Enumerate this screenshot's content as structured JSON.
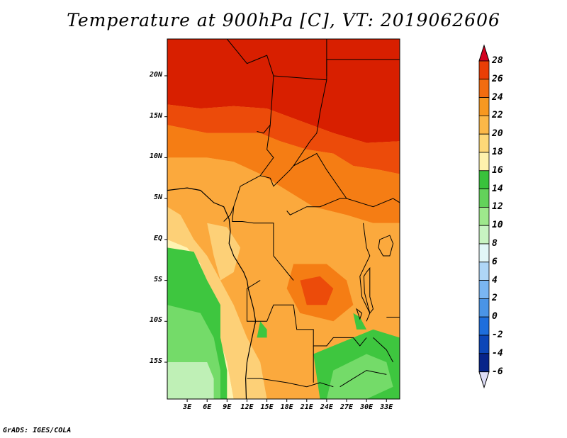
{
  "title": "Temperature at 900hPa [C], VT: 2019062606",
  "credit": "GrADS: IGES/COLA",
  "map": {
    "lon_range": [
      0,
      35
    ],
    "lat_range": [
      -19.5,
      24.5
    ],
    "lat_ticks": [
      {
        "value": 20,
        "label": "20N"
      },
      {
        "value": 15,
        "label": "15N"
      },
      {
        "value": 10,
        "label": "10N"
      },
      {
        "value": 5,
        "label": "5N"
      },
      {
        "value": 0,
        "label": "EQ"
      },
      {
        "value": -5,
        "label": "5S"
      },
      {
        "value": -10,
        "label": "10S"
      },
      {
        "value": -15,
        "label": "15S"
      }
    ],
    "lon_ticks": [
      {
        "value": 3,
        "label": "3E"
      },
      {
        "value": 6,
        "label": "6E"
      },
      {
        "value": 9,
        "label": "9E"
      },
      {
        "value": 12,
        "label": "12E"
      },
      {
        "value": 15,
        "label": "15E"
      },
      {
        "value": 18,
        "label": "18E"
      },
      {
        "value": 21,
        "label": "21E"
      },
      {
        "value": 24,
        "label": "24E"
      },
      {
        "value": 27,
        "label": "27E"
      },
      {
        "value": 30,
        "label": "30E"
      },
      {
        "value": 33,
        "label": "33E"
      }
    ],
    "field": [
      {
        "level": 27,
        "points": [
          [
            0,
            24.5
          ],
          [
            35,
            24.5
          ],
          [
            35,
            12
          ],
          [
            30,
            11.8
          ],
          [
            25,
            13
          ],
          [
            20,
            14.5
          ],
          [
            15,
            16
          ],
          [
            10,
            16.3
          ],
          [
            5,
            16
          ],
          [
            0,
            16.5
          ]
        ]
      },
      {
        "level": 25,
        "points": [
          [
            0,
            16.5
          ],
          [
            5,
            16
          ],
          [
            10,
            16.3
          ],
          [
            15,
            16
          ],
          [
            20,
            14.5
          ],
          [
            25,
            13
          ],
          [
            30,
            11.8
          ],
          [
            35,
            12
          ],
          [
            35,
            8
          ],
          [
            32,
            8.5
          ],
          [
            28,
            9
          ],
          [
            25,
            10.5
          ],
          [
            21,
            11
          ],
          [
            17,
            12
          ],
          [
            14,
            13
          ],
          [
            10,
            13
          ],
          [
            6,
            13
          ],
          [
            3,
            13.5
          ],
          [
            0,
            14
          ]
        ]
      },
      {
        "level": 23,
        "points": [
          [
            0,
            14
          ],
          [
            3,
            13.5
          ],
          [
            6,
            13
          ],
          [
            10,
            13
          ],
          [
            14,
            13
          ],
          [
            17,
            12
          ],
          [
            21,
            11
          ],
          [
            25,
            10.5
          ],
          [
            28,
            9
          ],
          [
            32,
            8.5
          ],
          [
            35,
            8
          ],
          [
            35,
            2
          ],
          [
            31,
            2
          ],
          [
            27,
            3
          ],
          [
            22,
            4
          ],
          [
            18,
            6
          ],
          [
            14,
            8
          ],
          [
            10,
            9.5
          ],
          [
            6,
            10
          ],
          [
            3,
            10
          ],
          [
            0,
            10
          ]
        ]
      },
      {
        "level": 21,
        "points": [
          [
            0,
            10
          ],
          [
            3,
            10
          ],
          [
            6,
            10
          ],
          [
            10,
            9.5
          ],
          [
            14,
            8
          ],
          [
            18,
            6
          ],
          [
            22,
            4
          ],
          [
            27,
            3
          ],
          [
            31,
            2
          ],
          [
            35,
            2
          ],
          [
            35,
            -19.5
          ],
          [
            15,
            -19.5
          ],
          [
            14,
            -15
          ],
          [
            12,
            -12
          ],
          [
            10,
            -8
          ],
          [
            8,
            -5
          ],
          [
            6,
            -2
          ],
          [
            4,
            0
          ],
          [
            2,
            3
          ],
          [
            0,
            4
          ]
        ]
      },
      {
        "level": 23,
        "points": [
          [
            19,
            -3
          ],
          [
            24,
            -3
          ],
          [
            27,
            -5
          ],
          [
            28,
            -8
          ],
          [
            25,
            -10
          ],
          [
            20,
            -9
          ],
          [
            18,
            -6
          ]
        ]
      },
      {
        "level": 25,
        "points": [
          [
            20,
            -5
          ],
          [
            23,
            -4.5
          ],
          [
            25,
            -6
          ],
          [
            24,
            -8
          ],
          [
            21,
            -8
          ]
        ]
      },
      {
        "level": 19,
        "points": [
          [
            0,
            4
          ],
          [
            2,
            3
          ],
          [
            4,
            0
          ],
          [
            6,
            -2
          ],
          [
            8,
            -5
          ],
          [
            10,
            -8
          ],
          [
            12,
            -12
          ],
          [
            14,
            -15
          ],
          [
            15,
            -19.5
          ],
          [
            10,
            -19.5
          ],
          [
            9,
            -15
          ],
          [
            7,
            -10
          ],
          [
            6,
            -6
          ],
          [
            5,
            -3
          ],
          [
            3,
            -1
          ],
          [
            0,
            0
          ]
        ]
      },
      {
        "level": 19,
        "points": [
          [
            6,
            2
          ],
          [
            9,
            1.5
          ],
          [
            11,
            -1
          ],
          [
            10,
            -4
          ],
          [
            8,
            -5
          ],
          [
            7,
            -2
          ]
        ]
      },
      {
        "level": 17,
        "points": [
          [
            0,
            0
          ],
          [
            3,
            -1
          ],
          [
            5,
            -3
          ],
          [
            6,
            -6
          ],
          [
            7,
            -10
          ],
          [
            9,
            -15
          ],
          [
            10,
            -19.5
          ],
          [
            0,
            -19.5
          ]
        ]
      },
      {
        "level": 15,
        "points": [
          [
            0,
            -1
          ],
          [
            4,
            -1.5
          ],
          [
            6,
            -5
          ],
          [
            8,
            -8
          ],
          [
            8,
            -12
          ],
          [
            9,
            -16
          ],
          [
            9,
            -19.5
          ],
          [
            0,
            -19.5
          ]
        ]
      },
      {
        "level": 13,
        "points": [
          [
            0,
            -8
          ],
          [
            5,
            -9
          ],
          [
            7,
            -12
          ],
          [
            8,
            -16
          ],
          [
            8,
            -19.5
          ],
          [
            0,
            -19.5
          ]
        ]
      },
      {
        "level": 11,
        "points": [
          [
            0,
            -15
          ],
          [
            6,
            -15
          ],
          [
            7,
            -17
          ],
          [
            7,
            -19.5
          ],
          [
            0,
            -19.5
          ]
        ]
      },
      {
        "level": 15,
        "points": [
          [
            22,
            -14
          ],
          [
            28,
            -12
          ],
          [
            31,
            -11
          ],
          [
            35,
            -12
          ],
          [
            35,
            -19.5
          ],
          [
            23,
            -19.5
          ]
        ]
      },
      {
        "level": 13,
        "points": [
          [
            25,
            -16
          ],
          [
            30,
            -14
          ],
          [
            33,
            -15
          ],
          [
            34,
            -18
          ],
          [
            30,
            -19.5
          ],
          [
            24,
            -19.5
          ]
        ]
      },
      {
        "level": 15,
        "points": [
          [
            14,
            -10
          ],
          [
            15,
            -11
          ],
          [
            15,
            -12
          ],
          [
            13.5,
            -12
          ]
        ]
      },
      {
        "level": 15,
        "points": [
          [
            28,
            -9
          ],
          [
            29,
            -9.5
          ],
          [
            30,
            -11
          ],
          [
            28.5,
            -11
          ]
        ]
      }
    ],
    "borders": [
      [
        [
          9,
          24.5
        ],
        [
          12,
          21.5
        ],
        [
          15,
          22.5
        ],
        [
          16,
          20
        ]
      ],
      [
        [
          16,
          20
        ],
        [
          15.5,
          14
        ],
        [
          14.5,
          13
        ],
        [
          13.5,
          13.2
        ]
      ],
      [
        [
          16,
          20
        ],
        [
          24,
          19.5
        ],
        [
          24,
          24.5
        ]
      ],
      [
        [
          24,
          20
        ],
        [
          24,
          22
        ],
        [
          25,
          22
        ],
        [
          35,
          22
        ]
      ],
      [
        [
          24,
          19.5
        ],
        [
          23,
          15.5
        ],
        [
          22.5,
          13
        ],
        [
          21.5,
          12
        ],
        [
          19,
          9
        ]
      ],
      [
        [
          15.5,
          14
        ],
        [
          15,
          11
        ],
        [
          16,
          10
        ],
        [
          14,
          7.8
        ],
        [
          15.5,
          7.5
        ],
        [
          16,
          6.5
        ],
        [
          18.5,
          8.5
        ],
        [
          19,
          9
        ]
      ],
      [
        [
          19,
          9
        ],
        [
          22.5,
          10.5
        ],
        [
          24,
          8.5
        ],
        [
          27,
          5
        ],
        [
          31,
          4
        ],
        [
          34,
          5
        ],
        [
          35,
          4.5
        ]
      ],
      [
        [
          14,
          7.8
        ],
        [
          11,
          6.5
        ],
        [
          10,
          4
        ],
        [
          9.8,
          2.2
        ],
        [
          11.3,
          2.2
        ],
        [
          13,
          2
        ],
        [
          16,
          2
        ],
        [
          16,
          -2
        ],
        [
          18,
          -4
        ],
        [
          19,
          -5
        ]
      ],
      [
        [
          10,
          4
        ],
        [
          9.5,
          3
        ],
        [
          8.5,
          2.2
        ]
      ],
      [
        [
          18,
          3.5
        ],
        [
          18.5,
          3
        ],
        [
          21,
          4
        ],
        [
          23,
          4
        ],
        [
          26,
          5
        ],
        [
          27,
          5
        ]
      ],
      [
        [
          29.5,
          2
        ],
        [
          30,
          -1
        ],
        [
          30.5,
          -2
        ],
        [
          29,
          -4.5
        ],
        [
          29.3,
          -7
        ],
        [
          30.5,
          -9
        ],
        [
          30,
          -10
        ]
      ],
      [
        [
          14,
          -5
        ],
        [
          12,
          -6
        ],
        [
          12,
          -10
        ],
        [
          15,
          -10
        ],
        [
          16,
          -8
        ],
        [
          19,
          -8
        ],
        [
          19.5,
          -11
        ],
        [
          22,
          -11
        ],
        [
          22,
          -13
        ],
        [
          24,
          -13
        ],
        [
          25,
          -12
        ],
        [
          28,
          -12
        ],
        [
          29,
          -13
        ],
        [
          30,
          -12
        ]
      ],
      [
        [
          12,
          -17
        ],
        [
          14,
          -17
        ],
        [
          18,
          -17.5
        ],
        [
          21,
          -18
        ],
        [
          23,
          -17.5
        ],
        [
          25,
          -18
        ]
      ],
      [
        [
          22,
          -13
        ],
        [
          22,
          -17.5
        ]
      ],
      [
        [
          33,
          -9.5
        ],
        [
          35,
          -9.5
        ]
      ],
      [
        [
          31,
          -12
        ],
        [
          33,
          -13.5
        ],
        [
          34,
          -15
        ]
      ],
      [
        [
          26,
          -18
        ],
        [
          28,
          -17
        ],
        [
          30,
          -16
        ],
        [
          33,
          -16.5
        ]
      ]
    ],
    "coast": [
      [
        [
          0,
          6
        ],
        [
          3,
          6.3
        ],
        [
          5,
          6
        ],
        [
          7,
          4.5
        ],
        [
          8.5,
          4
        ],
        [
          9.3,
          2.5
        ],
        [
          9.5,
          1
        ],
        [
          9.3,
          -0.5
        ],
        [
          10,
          -2
        ],
        [
          11.5,
          -4
        ],
        [
          12,
          -5
        ],
        [
          12.2,
          -6
        ],
        [
          13,
          -8.5
        ],
        [
          13.3,
          -10
        ],
        [
          12.5,
          -13
        ],
        [
          12,
          -15
        ],
        [
          11.8,
          -17
        ],
        [
          11.9,
          -19.5
        ]
      ]
    ],
    "lakes": [
      [
        [
          30,
          -4
        ],
        [
          30.5,
          -3.5
        ],
        [
          30.5,
          -7
        ],
        [
          31,
          -8.5
        ],
        [
          30.5,
          -9
        ],
        [
          29.7,
          -6.5
        ],
        [
          29.6,
          -4.5
        ]
      ],
      [
        [
          32,
          0
        ],
        [
          33.5,
          0.5
        ],
        [
          34,
          -0.5
        ],
        [
          33.5,
          -2
        ],
        [
          32.5,
          -2
        ],
        [
          31.8,
          -1
        ]
      ],
      [
        [
          28.5,
          -8.5
        ],
        [
          29.3,
          -9
        ],
        [
          29,
          -9.7
        ]
      ]
    ]
  },
  "colorbar": {
    "levels": [
      {
        "label": "28",
        "color": "#d62a00"
      },
      {
        "label": "26",
        "color": "#ea3e05"
      },
      {
        "label": "24",
        "color": "#f26c0f"
      },
      {
        "label": "22",
        "color": "#f79820"
      },
      {
        "label": "20",
        "color": "#fbb848"
      },
      {
        "label": "18",
        "color": "#fdd878"
      },
      {
        "label": "16",
        "color": "#fef2ad"
      },
      {
        "label": "14",
        "color": "#39c23c"
      },
      {
        "label": "12",
        "color": "#63d25a"
      },
      {
        "label": "10",
        "color": "#9ee88c"
      },
      {
        "label": "8",
        "color": "#c8f4c2"
      },
      {
        "label": "6",
        "color": "#e2f7f8"
      },
      {
        "label": "4",
        "color": "#afd6f6"
      },
      {
        "label": "2",
        "color": "#7ab6f2"
      },
      {
        "label": "0",
        "color": "#4a94e6"
      },
      {
        "label": "-2",
        "color": "#1e6edc"
      },
      {
        "label": "-4",
        "color": "#0c46b8"
      },
      {
        "label": "-6",
        "color": "#07248a"
      }
    ],
    "top_arrow_color": "#d3001e",
    "bottom_arrow_color": "#ddddf6"
  },
  "field_colors": {
    "27": "#d81f00",
    "25": "#ec4b0a",
    "23": "#f57d14",
    "21": "#fba93d",
    "19": "#fdd077",
    "17": "#fff3b2",
    "15": "#3ec63f",
    "13": "#74db69",
    "11": "#bff0b6"
  }
}
